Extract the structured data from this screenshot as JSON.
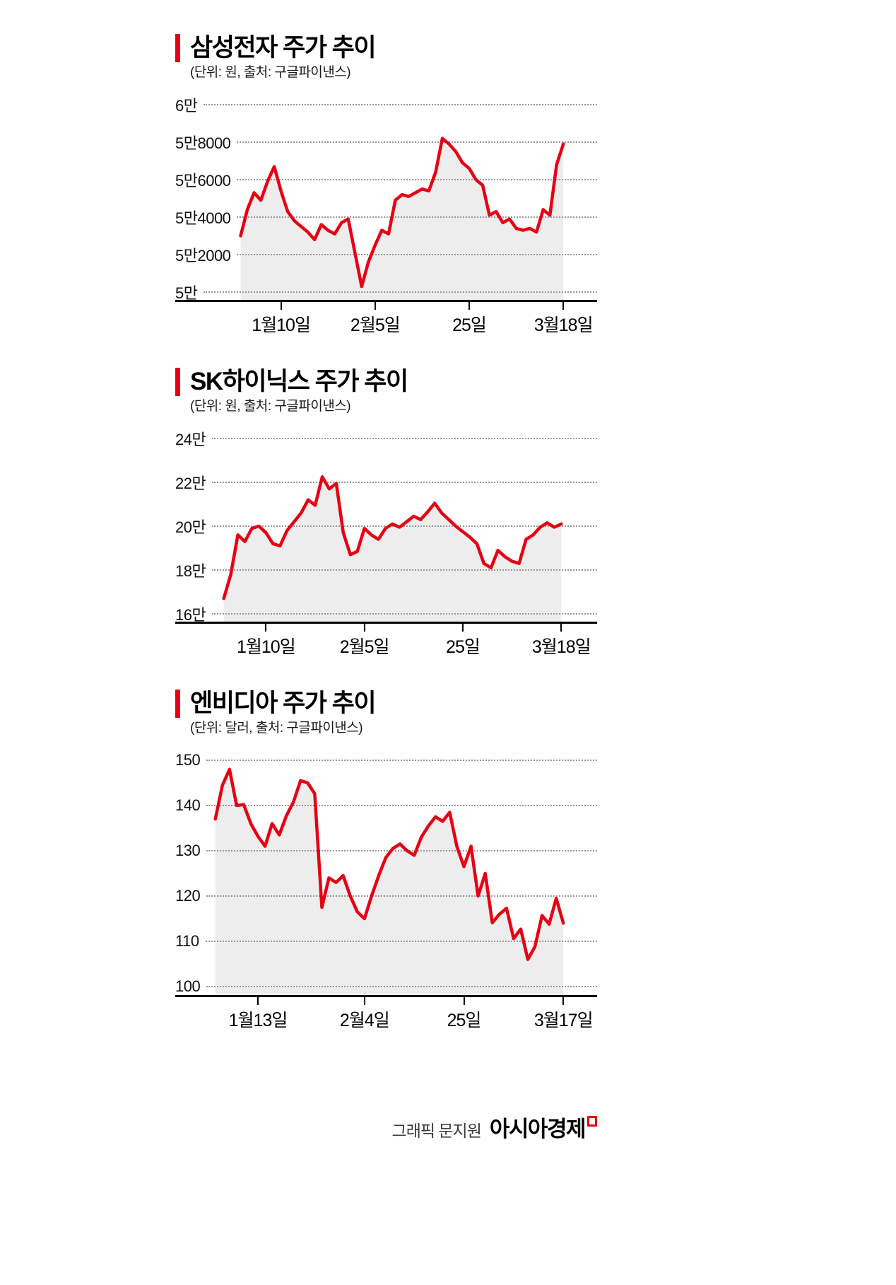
{
  "page": {
    "background": "#ffffff"
  },
  "accent_color": "#e60012",
  "chart_data": [
    {
      "type": "line",
      "title": "삼성전자 주가 추이",
      "subtitle": "(단위: 원, 출처: 구글파이낸스)",
      "unit": "원",
      "source": "구글파이낸스",
      "line_color": "#e60012",
      "fill_color": "#ededed",
      "grid": "dotted-horizontal",
      "ylim": [
        50000,
        60000
      ],
      "y_ticks": [
        {
          "label": "6만",
          "value": 60000
        },
        {
          "label": "5만8000",
          "value": 58000
        },
        {
          "label": "5만6000",
          "value": 56000
        },
        {
          "label": "5만4000",
          "value": 54000
        },
        {
          "label": "5만2000",
          "value": 52000
        },
        {
          "label": "5만",
          "value": 50000
        }
      ],
      "x_tick_labels": [
        "1월10일",
        "2월5일",
        "25일",
        "3월18일"
      ],
      "x_tick_indices": [
        6,
        20,
        34,
        48
      ],
      "values": [
        53000,
        54400,
        55300,
        54900,
        55900,
        56700,
        55400,
        54300,
        53800,
        53500,
        53200,
        52800,
        53600,
        53300,
        53100,
        53700,
        53900,
        52100,
        50300,
        51600,
        52500,
        53300,
        53100,
        54900,
        55200,
        55100,
        55300,
        55500,
        55400,
        56400,
        58200,
        57900,
        57500,
        56900,
        56600,
        56000,
        55700,
        54100,
        54300,
        53700,
        53900,
        53400,
        53300,
        53400,
        53200,
        54400,
        54100,
        56800,
        57900
      ]
    },
    {
      "type": "line",
      "title": "SK하이닉스 주가 추이",
      "subtitle": "(단위: 원, 출처: 구글파이낸스)",
      "unit": "원",
      "source": "구글파이낸스",
      "line_color": "#e60012",
      "fill_color": "#ededed",
      "grid": "dotted-horizontal",
      "ylim": [
        160000,
        240000
      ],
      "y_ticks": [
        {
          "label": "24만",
          "value": 240000
        },
        {
          "label": "22만",
          "value": 220000
        },
        {
          "label": "20만",
          "value": 200000
        },
        {
          "label": "18만",
          "value": 180000
        },
        {
          "label": "16만",
          "value": 160000
        }
      ],
      "x_tick_labels": [
        "1월10일",
        "2월5일",
        "25일",
        "3월18일"
      ],
      "x_tick_indices": [
        6,
        20,
        34,
        48
      ],
      "values": [
        167000,
        178000,
        196000,
        193000,
        199000,
        200000,
        197000,
        192000,
        191000,
        198000,
        202000,
        206000,
        212000,
        209500,
        222500,
        217000,
        219500,
        197000,
        187000,
        188500,
        199000,
        196000,
        194000,
        199000,
        201000,
        199500,
        202000,
        204500,
        203000,
        206500,
        210500,
        206000,
        203000,
        200000,
        197500,
        195000,
        192000,
        183000,
        181000,
        189000,
        186000,
        184000,
        183000,
        194000,
        196000,
        199500,
        201500,
        199500,
        201000
      ]
    },
    {
      "type": "line",
      "title": "엔비디아 주가 추이",
      "subtitle": "(단위: 달러, 출처: 구글파이낸스)",
      "unit": "달러",
      "source": "구글파이낸스",
      "line_color": "#e60012",
      "fill_color": "#ededed",
      "grid": "dotted-horizontal",
      "ylim": [
        100,
        150
      ],
      "y_ticks": [
        {
          "label": "150",
          "value": 150
        },
        {
          "label": "140",
          "value": 140
        },
        {
          "label": "130",
          "value": 130
        },
        {
          "label": "120",
          "value": 120
        },
        {
          "label": "110",
          "value": 110
        },
        {
          "label": "100",
          "value": 100
        }
      ],
      "x_tick_labels": [
        "1월13일",
        "2월4일",
        "25일",
        "3월17일"
      ],
      "x_tick_indices": [
        6,
        21,
        35,
        49
      ],
      "values": [
        137.0,
        144.5,
        148.0,
        140.0,
        140.2,
        136.0,
        133.2,
        131.0,
        136.0,
        133.5,
        137.7,
        140.8,
        145.5,
        145.0,
        142.6,
        117.5,
        124.0,
        123.0,
        124.5,
        120.0,
        116.5,
        115.0,
        120.0,
        124.5,
        128.5,
        130.5,
        131.5,
        130.0,
        129.0,
        133.0,
        135.5,
        137.5,
        136.5,
        138.5,
        131.0,
        126.5,
        131.0,
        120.0,
        125.0,
        114.1,
        116.0,
        117.3,
        110.6,
        112.7,
        106.0,
        108.8,
        115.7,
        113.8,
        119.5,
        114.0
      ]
    }
  ],
  "footer": {
    "credit": "그래픽 문지원",
    "brand": "아시아경제"
  }
}
